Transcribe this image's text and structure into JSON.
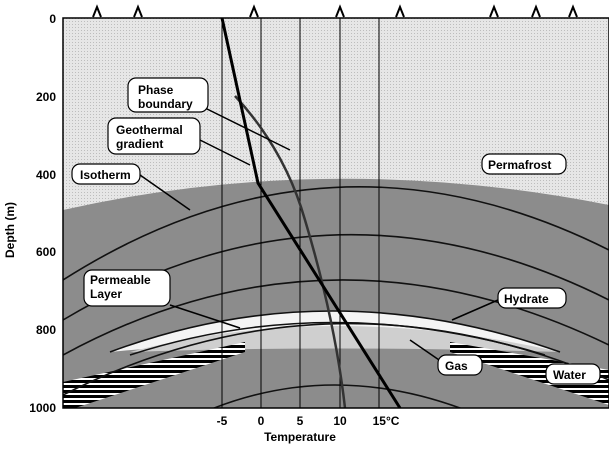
{
  "depth_axis": {
    "label": "Depth (m)",
    "ticks": [
      "0",
      "200",
      "400",
      "600",
      "800",
      "1000"
    ]
  },
  "temperature_axis": {
    "label": "Temperature",
    "ticks": [
      "-5",
      "0",
      "5",
      "10",
      "15°C"
    ]
  },
  "callouts": {
    "phase_boundary": "Phase boundary",
    "geothermal_gradient": "Geothermal gradient",
    "isotherm": "Isotherm",
    "permafrost": "Permafrost",
    "permeable_layer": "Permeable Layer",
    "hydrate": "Hydrate",
    "gas": "Gas",
    "water": "Water"
  }
}
